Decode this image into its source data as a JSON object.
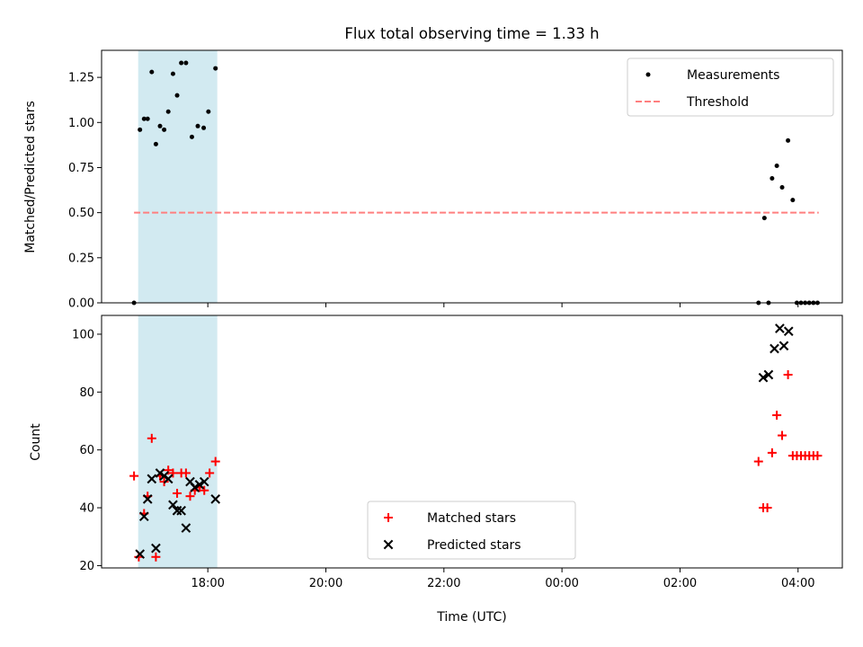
{
  "chart_data": {
    "type": "scatter",
    "title": "Flux total observing time = 1.33 h",
    "xlabel": "Time (UTC)",
    "x_tick_labels": [
      "18:00",
      "20:00",
      "22:00",
      "00:00",
      "02:00",
      "04:00"
    ],
    "x_tick_hours": [
      18,
      20,
      22,
      24,
      26,
      28
    ],
    "xlim_hours": [
      16.2,
      28.75
    ],
    "highlight_span_hours": [
      16.82,
      18.16
    ],
    "highlight_color": "#add8e6",
    "panels": [
      {
        "ylabel": "Matched/Predicted stars",
        "ylim": [
          0,
          1.4
        ],
        "y_ticks": [
          0,
          0.25,
          0.5,
          0.75,
          1.0,
          1.25
        ],
        "y_tick_labels": [
          "0.00",
          "0.25",
          "0.50",
          "0.75",
          "1.00",
          "1.25"
        ],
        "legend_position": "upper-right",
        "series": [
          {
            "name": "Measurements",
            "kind": "dot",
            "color": "#000000",
            "points": [
              [
                16.75,
                0.0
              ],
              [
                16.85,
                0.96
              ],
              [
                16.92,
                1.02
              ],
              [
                16.98,
                1.02
              ],
              [
                17.05,
                1.28
              ],
              [
                17.12,
                0.88
              ],
              [
                17.19,
                0.98
              ],
              [
                17.26,
                0.96
              ],
              [
                17.33,
                1.06
              ],
              [
                17.41,
                1.27
              ],
              [
                17.48,
                1.15
              ],
              [
                17.55,
                1.33
              ],
              [
                17.63,
                1.33
              ],
              [
                17.73,
                0.92
              ],
              [
                17.83,
                0.98
              ],
              [
                17.93,
                0.97
              ],
              [
                18.01,
                1.06
              ],
              [
                18.13,
                1.3
              ],
              [
                27.33,
                0.0
              ],
              [
                27.43,
                0.47
              ],
              [
                27.5,
                0.0
              ],
              [
                27.56,
                0.69
              ],
              [
                27.64,
                0.76
              ],
              [
                27.73,
                0.64
              ],
              [
                27.83,
                0.9
              ],
              [
                27.91,
                0.57
              ],
              [
                27.98,
                0.0
              ],
              [
                28.05,
                0.0
              ],
              [
                28.12,
                0.0
              ],
              [
                28.19,
                0.0
              ],
              [
                28.26,
                0.0
              ],
              [
                28.33,
                0.0
              ]
            ]
          },
          {
            "name": "Threshold",
            "kind": "dashed-line",
            "color": "#ff7f7f",
            "points": [
              [
                16.75,
                0.5
              ],
              [
                28.35,
                0.5
              ]
            ]
          }
        ]
      },
      {
        "ylabel": "Count",
        "ylim": [
          19.2,
          106.5
        ],
        "y_ticks": [
          20,
          40,
          60,
          80,
          100
        ],
        "y_tick_labels": [
          "20",
          "40",
          "60",
          "80",
          "100"
        ],
        "legend_position": "lower-center",
        "series": [
          {
            "name": "Matched stars",
            "kind": "plus",
            "color": "#ff0000",
            "points": [
              [
                16.75,
                51
              ],
              [
                16.83,
                23
              ],
              [
                16.92,
                38
              ],
              [
                16.98,
                44
              ],
              [
                17.05,
                64
              ],
              [
                17.12,
                23
              ],
              [
                17.19,
                51
              ],
              [
                17.26,
                49
              ],
              [
                17.33,
                53
              ],
              [
                17.41,
                52
              ],
              [
                17.48,
                45
              ],
              [
                17.55,
                52
              ],
              [
                17.63,
                52
              ],
              [
                17.7,
                44
              ],
              [
                17.78,
                46
              ],
              [
                17.86,
                47
              ],
              [
                17.94,
                46
              ],
              [
                18.03,
                52
              ],
              [
                18.13,
                56
              ],
              [
                27.33,
                56
              ],
              [
                27.41,
                40
              ],
              [
                27.48,
                40
              ],
              [
                27.56,
                59
              ],
              [
                27.64,
                72
              ],
              [
                27.73,
                65
              ],
              [
                27.83,
                86
              ],
              [
                27.91,
                58
              ],
              [
                27.98,
                58
              ],
              [
                28.05,
                58
              ],
              [
                28.12,
                58
              ],
              [
                28.19,
                58
              ],
              [
                28.26,
                58
              ],
              [
                28.33,
                58
              ]
            ]
          },
          {
            "name": "Predicted stars",
            "kind": "x",
            "color": "#000000",
            "points": [
              [
                16.85,
                24
              ],
              [
                16.92,
                37
              ],
              [
                16.98,
                43
              ],
              [
                17.05,
                50
              ],
              [
                17.12,
                26
              ],
              [
                17.19,
                52
              ],
              [
                17.26,
                51
              ],
              [
                17.33,
                50
              ],
              [
                17.41,
                41
              ],
              [
                17.48,
                39
              ],
              [
                17.55,
                39
              ],
              [
                17.63,
                33
              ],
              [
                17.7,
                49
              ],
              [
                17.78,
                47
              ],
              [
                17.86,
                48
              ],
              [
                17.94,
                49
              ],
              [
                18.13,
                43
              ],
              [
                27.41,
                85
              ],
              [
                27.5,
                86
              ],
              [
                27.6,
                95
              ],
              [
                27.69,
                102
              ],
              [
                27.76,
                96
              ],
              [
                27.84,
                101
              ]
            ]
          }
        ]
      }
    ]
  }
}
